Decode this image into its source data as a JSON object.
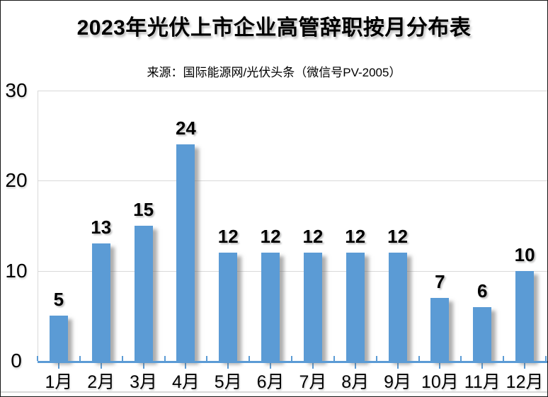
{
  "title": "2023年光伏上市企业高管辞职按月分布表",
  "subtitle": "来源：国际能源网/光伏头条（微信号PV-2005）",
  "colors": {
    "bar": "#5B9BD5",
    "axis": "#5B9BD5",
    "gridline": "#D9D9D9",
    "text": "#000000",
    "background": "#FFFFFF"
  },
  "chart_data": {
    "type": "bar",
    "title": "2023年光伏上市企业高管辞职按月分布表",
    "subtitle": "来源：国际能源网/光伏头条（微信号PV-2005）",
    "categories": [
      "1月",
      "2月",
      "3月",
      "4月",
      "5月",
      "6月",
      "7月",
      "8月",
      "9月",
      "10月",
      "11月",
      "12月"
    ],
    "values": [
      5,
      13,
      15,
      24,
      12,
      12,
      12,
      12,
      12,
      7,
      6,
      10
    ],
    "data_labels": [
      5,
      13,
      15,
      24,
      12,
      12,
      12,
      12,
      12,
      7,
      6,
      10
    ],
    "xlabel": "",
    "ylabel": "",
    "ylim": [
      0,
      30
    ],
    "yticks": [
      0,
      10,
      20,
      30
    ],
    "grid": true,
    "legend": "none",
    "bar_color": "#5B9BD5",
    "bar_shadow": true
  }
}
